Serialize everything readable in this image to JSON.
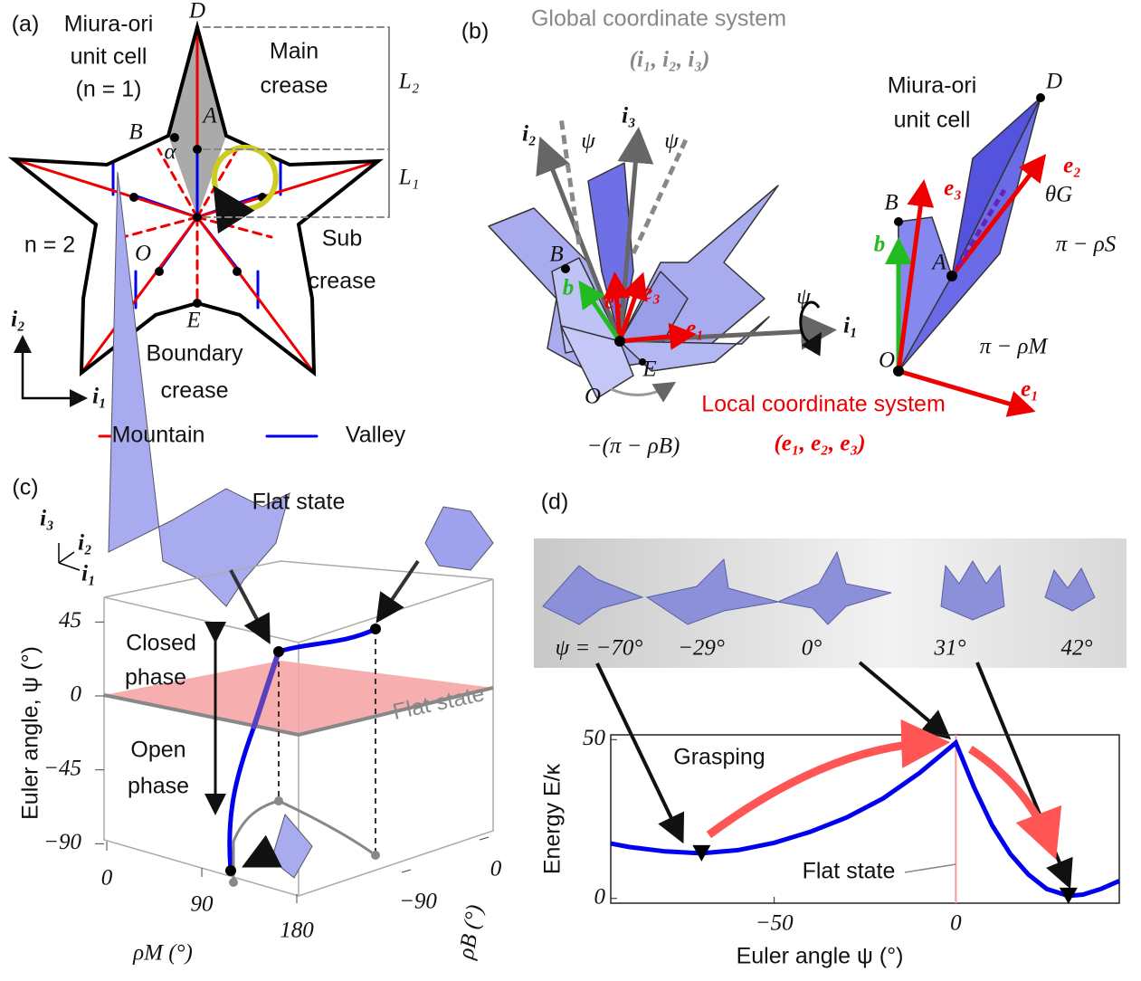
{
  "panel_a": {
    "texts": [
      "(a)",
      "Miura-ori",
      "unit cell",
      "(n = 1)",
      "D",
      "A",
      "B",
      "α",
      "O",
      "E",
      "L₂",
      "L₁",
      "Main",
      "crease",
      "n = 2",
      "Sub",
      "crease",
      "Boundary",
      "crease",
      "i₂",
      "i₁",
      "Mountain",
      "Valley"
    ]
  },
  "panel_b": {
    "texts": [
      "(b)",
      "Global coordinate system",
      "(i₁, i₂, i₃)",
      "i₂",
      "ψ",
      "i₃",
      "ψ",
      "B",
      "e₂",
      "e₃",
      "b",
      "e₁",
      "ψ",
      "i₁",
      "O",
      "E",
      "−(π − ρB)",
      "Local coordinate system",
      "(e₁, e₂, e₃)",
      "Miura-ori",
      "unit cell",
      "D",
      "B",
      "e₃",
      "e₂",
      "θG",
      "π − ρS",
      "b",
      "A",
      "π − ρM",
      "O",
      "e₁"
    ]
  },
  "panel_c": {
    "texts": [
      "(c)",
      "Flat state",
      "i₃",
      "i₂",
      "i₁",
      "Euler angle, ψ (°)",
      "Closed",
      "phase",
      "Open",
      "phase",
      "Flat state",
      "ρM (°)",
      "ρB (°)"
    ],
    "psi_ticks": [
      45,
      0,
      {
        "value": -45,
        "label": "−45"
      },
      {
        "value": -90,
        "label": "−90"
      }
    ],
    "rhoM_ticks": [
      0,
      90,
      180
    ],
    "rhoB_ticks": [
      0,
      {
        "value": -90,
        "label": "−90"
      }
    ]
  },
  "panel_d": {
    "texts": [
      "(d)",
      "ψ = −70°",
      "−29°",
      "0°",
      "31°",
      "42°"
    ]
  },
  "chart_data": {
    "type": "line",
    "y_label": "Energy E/κ",
    "x_label": "Euler angle ψ (°)",
    "annotations": [
      "Grasping",
      "Flat state"
    ],
    "x": [
      -95,
      -90,
      -80,
      -70,
      -60,
      -50,
      -40,
      -30,
      -20,
      -10,
      0,
      5,
      10,
      15,
      20,
      25,
      31,
      35,
      40,
      45
    ],
    "series": [
      {
        "color": "#0000ee",
        "values": [
          17.3,
          16.2,
          14.8,
          14.2,
          15.2,
          17.5,
          21,
          25.5,
          31.5,
          39.5,
          49,
          35,
          23,
          14,
          7.5,
          3,
          0.8,
          1.2,
          3,
          5.5
        ]
      }
    ],
    "markers": {
      "x": [
        -70,
        31
      ],
      "values": [
        14.2,
        0.8
      ]
    },
    "flat_state_x": 0,
    "xlim": [
      -95,
      45
    ],
    "ylim": [
      -1.5,
      51.5
    ],
    "xticks": [
      {
        "value": -50,
        "label": "−50"
      },
      0
    ],
    "yticks": [
      0,
      50
    ]
  }
}
